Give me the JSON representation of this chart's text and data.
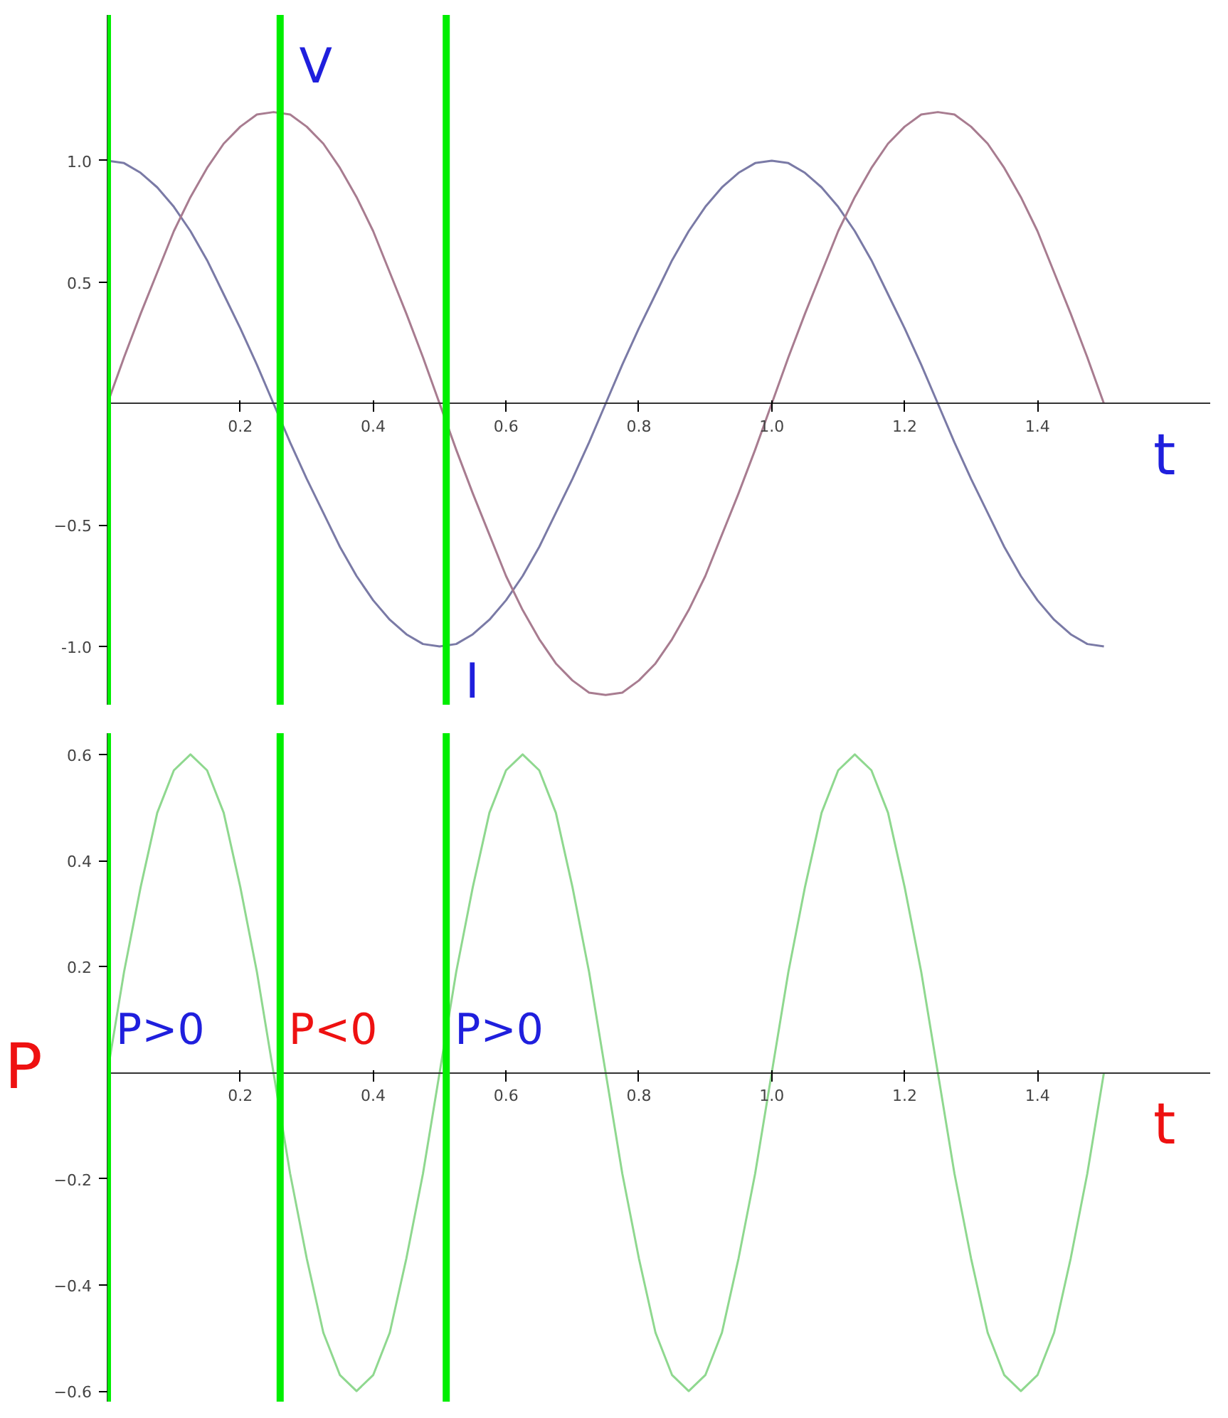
{
  "chart_data": [
    {
      "type": "line",
      "xlabel": "t",
      "x": [
        0,
        0.025,
        0.05,
        0.075,
        0.1,
        0.125,
        0.15,
        0.175,
        0.2,
        0.225,
        0.25,
        0.275,
        0.3,
        0.325,
        0.35,
        0.375,
        0.4,
        0.425,
        0.45,
        0.475,
        0.5,
        0.525,
        0.55,
        0.575,
        0.6,
        0.625,
        0.65,
        0.675,
        0.7,
        0.725,
        0.75,
        0.775,
        0.8,
        0.825,
        0.85,
        0.875,
        0.9,
        0.925,
        0.95,
        0.975,
        1,
        1.025,
        1.05,
        1.075,
        1.1,
        1.125,
        1.15,
        1.175,
        1.2,
        1.225,
        1.25,
        1.275,
        1.3,
        1.325,
        1.35,
        1.375,
        1.4,
        1.425,
        1.45,
        1.475,
        1.5
      ],
      "series": [
        {
          "name": "I",
          "color": "#7a7aa6",
          "values": [
            1,
            0.99,
            0.95,
            0.89,
            0.81,
            0.71,
            0.59,
            0.45,
            0.31,
            0.16,
            0,
            -0.16,
            -0.31,
            -0.45,
            -0.59,
            -0.71,
            -0.81,
            -0.89,
            -0.95,
            -0.99,
            -1,
            -0.99,
            -0.95,
            -0.89,
            -0.81,
            -0.71,
            -0.59,
            -0.45,
            -0.31,
            -0.16,
            0,
            0.16,
            0.31,
            0.45,
            0.59,
            0.71,
            0.81,
            0.89,
            0.95,
            0.99,
            1,
            0.99,
            0.95,
            0.89,
            0.81,
            0.71,
            0.59,
            0.45,
            0.31,
            0.16,
            0,
            -0.16,
            -0.31,
            -0.45,
            -0.59,
            -0.71,
            -0.81,
            -0.89,
            -0.95,
            -0.99,
            -1
          ]
        },
        {
          "name": "V",
          "color": "#a87c90",
          "values": [
            0,
            0.19,
            0.37,
            0.54,
            0.71,
            0.85,
            0.97,
            1.07,
            1.14,
            1.19,
            1.2,
            1.19,
            1.14,
            1.07,
            0.97,
            0.85,
            0.71,
            0.54,
            0.37,
            0.19,
            0,
            -0.19,
            -0.37,
            -0.54,
            -0.71,
            -0.85,
            -0.97,
            -1.07,
            -1.14,
            -1.19,
            -1.2,
            -1.19,
            -1.14,
            -1.07,
            -0.97,
            -0.85,
            -0.71,
            -0.54,
            -0.37,
            -0.19,
            0,
            0.19,
            0.37,
            0.54,
            0.71,
            0.85,
            0.97,
            1.07,
            1.14,
            1.19,
            1.2,
            1.19,
            1.14,
            1.07,
            0.97,
            0.85,
            0.71,
            0.54,
            0.37,
            0.19,
            0
          ]
        }
      ],
      "xlim": [
        0,
        1.66
      ],
      "ylim": [
        -1.24,
        1.6
      ],
      "xticks": [
        0.2,
        0.4,
        0.6,
        0.8,
        {
          "value": 1,
          "label": "1.0"
        },
        1.2,
        1.4
      ],
      "yticks": [
        {
          "value": -1,
          "label": "-1.0"
        },
        -0.5,
        0.5,
        {
          "value": 1,
          "label": "1.0"
        }
      ],
      "ref_lines": [
        {
          "axis": "x",
          "value": 0,
          "color": "#00ee00"
        },
        {
          "axis": "x",
          "value": 0.26,
          "color": "#00ee00"
        },
        {
          "axis": "x",
          "value": 0.51,
          "color": "#00ee00"
        }
      ],
      "grid": false,
      "legend": false
    },
    {
      "type": "line",
      "xlabel": "t",
      "ylabel": "P",
      "x": [
        0,
        0.025,
        0.05,
        0.075,
        0.1,
        0.125,
        0.15,
        0.175,
        0.2,
        0.225,
        0.25,
        0.275,
        0.3,
        0.325,
        0.35,
        0.375,
        0.4,
        0.425,
        0.45,
        0.475,
        0.5,
        0.525,
        0.55,
        0.575,
        0.6,
        0.625,
        0.65,
        0.675,
        0.7,
        0.725,
        0.75,
        0.775,
        0.8,
        0.825,
        0.85,
        0.875,
        0.9,
        0.925,
        0.95,
        0.975,
        1,
        1.025,
        1.05,
        1.075,
        1.1,
        1.125,
        1.15,
        1.175,
        1.2,
        1.225,
        1.25,
        1.275,
        1.3,
        1.325,
        1.35,
        1.375,
        1.4,
        1.425,
        1.45,
        1.475,
        1.5
      ],
      "series": [
        {
          "color": "#8fd88f",
          "values": [
            0,
            0.19,
            0.35,
            0.49,
            0.57,
            0.6,
            0.57,
            0.49,
            0.35,
            0.19,
            0,
            -0.19,
            -0.35,
            -0.49,
            -0.57,
            -0.6,
            -0.57,
            -0.49,
            -0.35,
            -0.19,
            0,
            0.19,
            0.35,
            0.49,
            0.57,
            0.6,
            0.57,
            0.49,
            0.35,
            0.19,
            0,
            -0.19,
            -0.35,
            -0.49,
            -0.57,
            -0.6,
            -0.57,
            -0.49,
            -0.35,
            -0.19,
            0,
            0.19,
            0.35,
            0.49,
            0.57,
            0.6,
            0.57,
            0.49,
            0.35,
            0.19,
            0,
            -0.19,
            -0.35,
            -0.49,
            -0.57,
            -0.6,
            -0.57,
            -0.49,
            -0.35,
            -0.19,
            0
          ]
        }
      ],
      "xlim": [
        0,
        1.66
      ],
      "ylim": [
        -0.62,
        0.64
      ],
      "xticks": [
        0.2,
        0.4,
        0.6,
        0.8,
        {
          "value": 1,
          "label": "1.0"
        },
        1.2,
        1.4
      ],
      "yticks": [
        -0.6,
        -0.4,
        -0.2,
        0.2,
        0.4,
        0.6
      ],
      "ref_lines": [
        {
          "axis": "x",
          "value": 0,
          "color": "#00ee00"
        },
        {
          "axis": "x",
          "value": 0.26,
          "color": "#00ee00"
        },
        {
          "axis": "x",
          "value": 0.51,
          "color": "#00ee00"
        }
      ],
      "annotations": [
        "P>0",
        "P<0",
        "P>0"
      ],
      "grid": false,
      "legend": false
    }
  ]
}
